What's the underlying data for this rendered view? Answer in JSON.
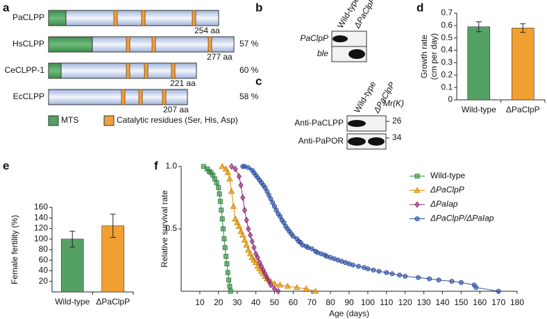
{
  "panels": {
    "a": {
      "label": "a",
      "proteins": [
        {
          "name": "PaCLPP",
          "length": "254 aa"
        },
        {
          "name": "HsCLPP",
          "length": "277 aa",
          "identity": "57 %"
        },
        {
          "name": "CeCLPP-1",
          "length": "221 aa",
          "identity": "60 %"
        },
        {
          "name": "EcCLPP",
          "length": "207 aa",
          "identity": "58 %"
        }
      ],
      "legend": [
        "MTS",
        "Catalytic residues (Ser, His, Asp)"
      ]
    },
    "b": {
      "label": "b",
      "columns": [
        "Wild-type",
        "ΔPaClpP"
      ],
      "rows": [
        "PaClpP",
        "ble"
      ]
    },
    "c": {
      "label": "c",
      "columns": [
        "Wild-type",
        "ΔPaClpP"
      ],
      "mr_label": "Mr(K)",
      "rows": [
        "Anti-PaCLPP",
        "Anti-PaPOR"
      ],
      "markers": [
        "26",
        "34"
      ]
    }
  },
  "chart_data": [
    {
      "type": "bar",
      "panel_label": "d",
      "ylabel": [
        "Growth rate",
        "(cm per day)"
      ],
      "categories": [
        "Wild-type",
        "ΔPaClpP"
      ],
      "values": [
        0.59,
        0.58
      ],
      "errors": [
        0.04,
        0.035
      ],
      "colors": [
        "#55a065",
        "#f0a030"
      ],
      "ylim": [
        0,
        0.7
      ],
      "yticks": [
        0,
        0.1,
        0.2,
        0.3,
        0.4,
        0.5,
        0.6,
        0.7
      ]
    },
    {
      "type": "bar",
      "panel_label": "e",
      "ylabel": [
        "Female fertility (%)"
      ],
      "categories": [
        "Wild-type",
        "ΔPaClpP"
      ],
      "values": [
        100,
        125
      ],
      "errors": [
        15,
        22
      ],
      "colors": [
        "#55a065",
        "#f0a030"
      ],
      "ylim": [
        0,
        160
      ],
      "yticks": [
        20,
        40,
        60,
        80,
        100,
        120,
        140,
        160
      ]
    },
    {
      "type": "line",
      "panel_label": "f",
      "xlabel": "Age (days)",
      "ylabel": "Relative survival rate",
      "xlim": [
        0,
        180
      ],
      "xticks": [
        10,
        20,
        30,
        40,
        50,
        60,
        70,
        80,
        90,
        100,
        110,
        120,
        130,
        140,
        150,
        160,
        170,
        180
      ],
      "ylim": [
        0,
        1
      ],
      "yticks": [
        {
          "value": 1,
          "label": "1.0"
        },
        0.5
      ],
      "series": [
        {
          "name": "Wild-type",
          "color": "#2e8540",
          "marker": "square",
          "x": [
            12,
            14,
            15,
            16,
            17,
            18,
            19,
            20,
            20.5,
            21,
            21.5,
            22,
            22.5,
            23,
            23.5,
            24,
            24.5,
            25,
            25.5,
            26,
            26.5
          ],
          "values": [
            1,
            0.98,
            0.96,
            0.95,
            0.93,
            0.9,
            0.87,
            0.83,
            0.78,
            0.72,
            0.65,
            0.58,
            0.5,
            0.42,
            0.35,
            0.28,
            0.22,
            0.15,
            0.09,
            0.04,
            0
          ]
        },
        {
          "name": "ΔPaClpP",
          "color": "#d98a00",
          "marker": "triangle",
          "x": [
            22,
            24,
            25,
            26,
            27,
            28,
            29,
            30,
            31,
            32,
            33,
            34,
            35,
            36,
            37,
            38,
            39,
            40,
            41,
            42,
            43,
            44,
            45,
            46,
            48,
            50,
            53,
            57,
            62,
            67,
            72
          ],
          "values": [
            1,
            0.98,
            0.95,
            0.9,
            0.8,
            0.68,
            0.58,
            0.55,
            0.52,
            0.48,
            0.45,
            0.41,
            0.37,
            0.33,
            0.3,
            0.27,
            0.25,
            0.23,
            0.2,
            0.18,
            0.16,
            0.14,
            0.12,
            0.1,
            0.08,
            0.06,
            0.05,
            0.04,
            0.03,
            0.02,
            0
          ]
        },
        {
          "name": "ΔPaIap",
          "color": "#8e2a7a",
          "marker": "diamond",
          "x": [
            27,
            29,
            31,
            32,
            33,
            34,
            35,
            36,
            37,
            38,
            39,
            40,
            41,
            42,
            43,
            44,
            45,
            46,
            47,
            48,
            50,
            52
          ],
          "values": [
            1,
            0.98,
            0.92,
            0.85,
            0.75,
            0.65,
            0.57,
            0.5,
            0.45,
            0.4,
            0.35,
            0.3,
            0.27,
            0.23,
            0.2,
            0.17,
            0.14,
            0.11,
            0.08,
            0.05,
            0.02,
            0
          ]
        },
        {
          "name": "ΔPaClpP/ΔPaIap",
          "color": "#2c4ea0",
          "marker": "circle",
          "x": [
            33,
            34,
            36,
            38,
            39,
            40,
            41,
            42,
            43,
            44,
            45,
            46,
            47,
            48,
            49,
            50,
            51,
            52,
            53,
            54,
            55,
            56,
            57,
            58,
            59,
            60,
            62,
            63,
            64,
            65,
            67,
            68,
            70,
            72,
            73,
            75,
            77,
            78,
            80,
            82,
            84,
            86,
            88,
            90,
            92,
            95,
            98,
            100,
            103,
            106,
            110,
            113,
            117,
            120,
            127,
            133,
            138,
            145,
            150,
            157,
            158,
            170
          ],
          "values": [
            1,
            1,
            0.99,
            0.97,
            0.95,
            0.93,
            0.91,
            0.89,
            0.87,
            0.85,
            0.83,
            0.8,
            0.77,
            0.74,
            0.71,
            0.68,
            0.65,
            0.62,
            0.6,
            0.57,
            0.55,
            0.52,
            0.5,
            0.48,
            0.46,
            0.44,
            0.42,
            0.4,
            0.39,
            0.37,
            0.36,
            0.35,
            0.34,
            0.32,
            0.31,
            0.3,
            0.29,
            0.28,
            0.27,
            0.26,
            0.25,
            0.24,
            0.23,
            0.22,
            0.21,
            0.2,
            0.19,
            0.18,
            0.17,
            0.16,
            0.15,
            0.14,
            0.13,
            0.12,
            0.11,
            0.1,
            0.09,
            0.08,
            0.07,
            0.05,
            0.03,
            0
          ]
        }
      ]
    }
  ]
}
